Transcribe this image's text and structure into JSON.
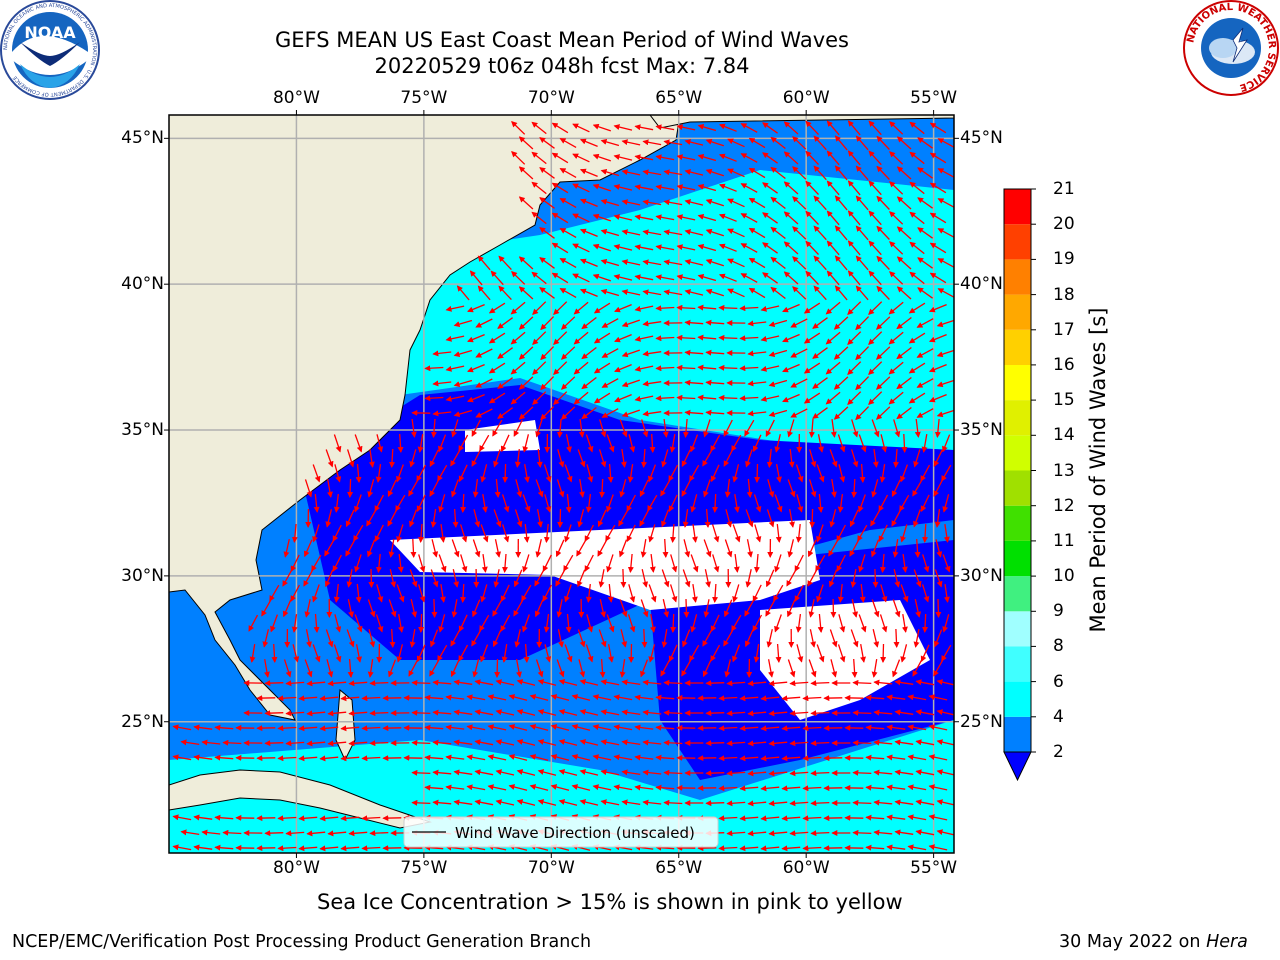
{
  "header": {
    "title_line1": "GEFS MEAN US East Coast Mean Period of Wind Waves",
    "title_line2": "20220529 t06z 048h fcst   Max: 7.84"
  },
  "logos": {
    "left": {
      "name": "noaa-logo",
      "text": "NOAA",
      "ring_text": "NATIONAL OCEANIC AND ATMOSPHERIC ADMINISTRATION · U.S. DEPARTMENT OF COMMERCE"
    },
    "right": {
      "name": "nws-logo",
      "ring_text": "NATIONAL WEATHER SERVICE"
    }
  },
  "map": {
    "lon_ticks": [
      "80°W",
      "75°W",
      "70°W",
      "65°W",
      "60°W",
      "55°W"
    ],
    "lat_ticks": [
      "45°N",
      "40°N",
      "35°N",
      "30°N",
      "25°N"
    ],
    "lon_range": [
      -85,
      -54.2
    ],
    "lat_range": [
      20.5,
      45.8
    ],
    "legend_label": "Wind Wave Direction (unscaled)",
    "colors": {
      "land": "#efedda",
      "coast": "#000000",
      "grid": "#b0b0b0",
      "arrow": "#ff0000",
      "no_data": "#ffffff"
    }
  },
  "colorbar": {
    "label": "Mean Period of Wind Waves [s]",
    "levels": [
      "2",
      "4",
      "6",
      "8",
      "9",
      "10",
      "11",
      "12",
      "13",
      "14",
      "15",
      "16",
      "17",
      "18",
      "19",
      "20",
      "21"
    ],
    "colors": [
      "#0000ff",
      "#0080ff",
      "#00ffff",
      "#40ffff",
      "#a0ffff",
      "#40f080",
      "#00e000",
      "#40e000",
      "#a0e000",
      "#d0ff00",
      "#e0f000",
      "#ffff00",
      "#ffd000",
      "#ffa800",
      "#ff8000",
      "#ff4000",
      "#ff0000"
    ],
    "underflow_color": "#0000ff"
  },
  "footer": {
    "sea_ice_note": "Sea Ice Concentration > 15% is shown in pink to yellow",
    "credit": "NCEP/EMC/Verification Post Processing Product Generation Branch",
    "date": "30 May 2022 on",
    "machine": "Hera"
  }
}
